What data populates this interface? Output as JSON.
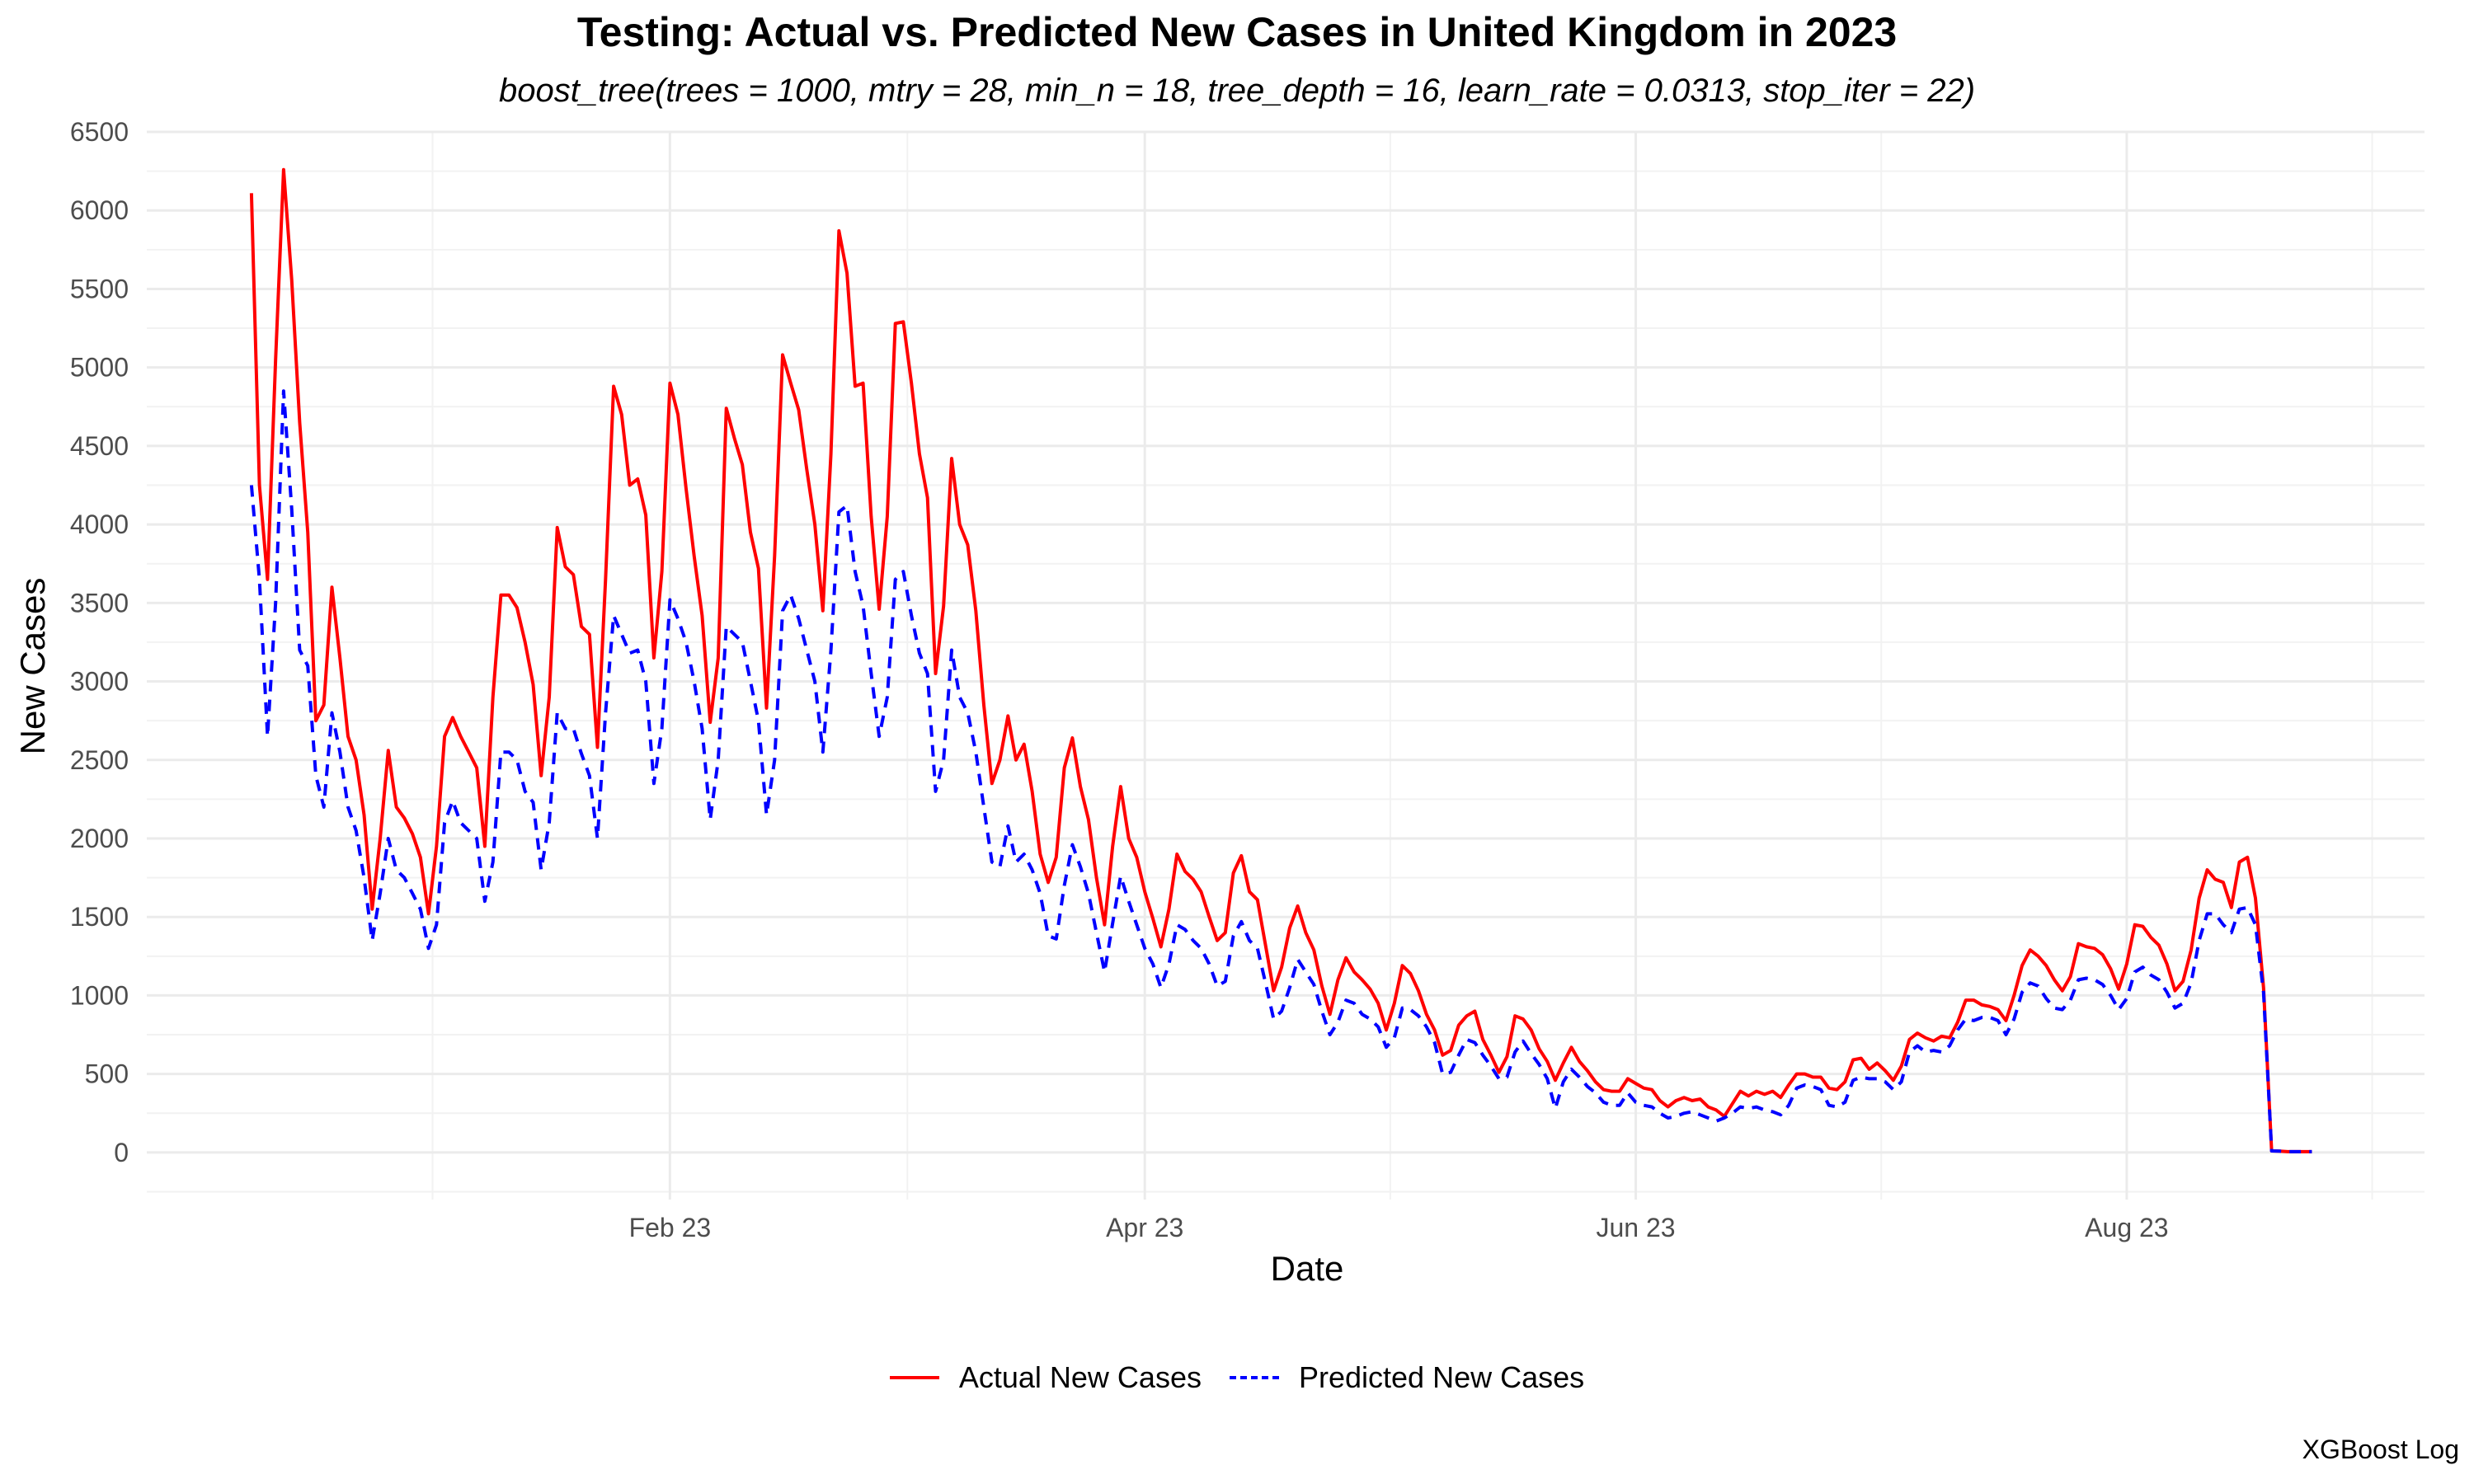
{
  "title": "Testing: Actual vs. Predicted New Cases in United Kingdom in 2023",
  "subtitle": "boost_tree(trees = 1000, mtry = 28, min_n = 18, tree_depth = 16, learn_rate = 0.0313, stop_iter = 22)",
  "caption": "XGBoost Log",
  "chart_data": {
    "type": "line",
    "title": "Testing: Actual vs. Predicted New Cases in United Kingdom in 2023",
    "subtitle": "boost_tree(trees = 1000, mtry = 28, min_n = 18, tree_depth = 16, learn_rate = 0.0313, stop_iter = 22)",
    "xlabel": "Date",
    "ylabel": "New Cases",
    "x_type": "date",
    "x_start": "2023-01-02",
    "xlim": [
      "2022-12-20",
      "2023-09-29"
    ],
    "ylim": [
      -300,
      6500
    ],
    "x_ticks": [
      {
        "date": "2023-02-23",
        "label": "Feb 23"
      },
      {
        "date": "2023-04-23",
        "label": "Apr 23"
      },
      {
        "date": "2023-06-23",
        "label": "Jun 23"
      },
      {
        "date": "2023-08-23",
        "label": "Aug 23"
      }
    ],
    "y_ticks": [
      0,
      500,
      1000,
      1500,
      2000,
      2500,
      3000,
      3500,
      4000,
      4500,
      5000,
      5500,
      6000,
      6500
    ],
    "grid": true,
    "legend_position": "bottom",
    "series": [
      {
        "name": "Actual New Cases",
        "color": "#ff0000",
        "style": "solid",
        "values": [
          6110,
          4250,
          3650,
          5050,
          6260,
          5560,
          4650,
          3950,
          2750,
          2850,
          3600,
          3150,
          2650,
          2500,
          2150,
          1550,
          2000,
          2560,
          2200,
          2130,
          2030,
          1880,
          1520,
          1950,
          2650,
          2770,
          2650,
          2550,
          2450,
          1950,
          2900,
          3550,
          3550,
          3470,
          3250,
          2980,
          2400,
          2900,
          3980,
          3730,
          3680,
          3350,
          3300,
          2580,
          3650,
          4880,
          4700,
          4250,
          4290,
          4060,
          3150,
          3700,
          4900,
          4700,
          4230,
          3800,
          3420,
          2740,
          3150,
          4740,
          4550,
          4380,
          3950,
          3720,
          2830,
          3800,
          5080,
          4900,
          4730,
          4350,
          4000,
          3450,
          4450,
          5870,
          5600,
          4880,
          4900,
          4050,
          3460,
          4050,
          5280,
          5290,
          4900,
          4450,
          4170,
          3050,
          3480,
          4420,
          4000,
          3870,
          3450,
          2850,
          2350,
          2500,
          2780,
          2500,
          2600,
          2300,
          1900,
          1720,
          1880,
          2450,
          2640,
          2330,
          2120,
          1750,
          1450,
          1950,
          2330,
          2000,
          1880,
          1660,
          1490,
          1310,
          1550,
          1900,
          1790,
          1740,
          1660,
          1500,
          1350,
          1400,
          1780,
          1890,
          1660,
          1610,
          1320,
          1030,
          1180,
          1430,
          1570,
          1400,
          1290,
          1060,
          880,
          1100,
          1240,
          1150,
          1100,
          1040,
          950,
          780,
          950,
          1190,
          1140,
          1030,
          880,
          780,
          620,
          650,
          810,
          870,
          900,
          720,
          620,
          510,
          610,
          870,
          850,
          780,
          660,
          580,
          460,
          570,
          670,
          580,
          520,
          450,
          400,
          390,
          390,
          470,
          440,
          410,
          400,
          330,
          290,
          330,
          350,
          330,
          340,
          290,
          270,
          230,
          310,
          390,
          360,
          390,
          370,
          390,
          350,
          430,
          500,
          500,
          480,
          480,
          410,
          400,
          450,
          590,
          600,
          530,
          570,
          520,
          460,
          550,
          720,
          760,
          730,
          710,
          740,
          730,
          830,
          970,
          970,
          940,
          930,
          910,
          840,
          1000,
          1190,
          1290,
          1250,
          1190,
          1100,
          1030,
          1120,
          1330,
          1310,
          1300,
          1260,
          1170,
          1040,
          1200,
          1450,
          1440,
          1370,
          1320,
          1200,
          1030,
          1090,
          1290,
          1620,
          1800,
          1740,
          1720,
          1560,
          1850,
          1880,
          1620,
          1050,
          10,
          8,
          5,
          5,
          5,
          5
        ]
      },
      {
        "name": "Predicted New Cases",
        "color": "#0000ff",
        "style": "dashed",
        "values": [
          4250,
          3650,
          2650,
          3500,
          4850,
          4100,
          3200,
          3100,
          2400,
          2200,
          2800,
          2550,
          2200,
          2050,
          1750,
          1350,
          1650,
          2000,
          1800,
          1750,
          1650,
          1550,
          1300,
          1450,
          2100,
          2240,
          2100,
          2050,
          2000,
          1600,
          1850,
          2550,
          2550,
          2500,
          2300,
          2230,
          1800,
          2100,
          2800,
          2700,
          2700,
          2540,
          2400,
          2000,
          2800,
          3420,
          3300,
          3180,
          3200,
          3000,
          2350,
          2700,
          3520,
          3400,
          3250,
          3000,
          2700,
          2120,
          2500,
          3350,
          3300,
          3250,
          3000,
          2750,
          2150,
          2500,
          3450,
          3550,
          3400,
          3200,
          3000,
          2550,
          3200,
          4080,
          4120,
          3700,
          3480,
          3050,
          2650,
          2900,
          3650,
          3700,
          3420,
          3180,
          3050,
          2300,
          2500,
          3200,
          2900,
          2800,
          2550,
          2200,
          1850,
          1820,
          2080,
          1850,
          1900,
          1800,
          1650,
          1380,
          1360,
          1700,
          1960,
          1820,
          1650,
          1400,
          1150,
          1460,
          1760,
          1600,
          1450,
          1300,
          1200,
          1050,
          1200,
          1450,
          1420,
          1350,
          1300,
          1200,
          1060,
          1090,
          1380,
          1470,
          1350,
          1300,
          1080,
          850,
          900,
          1050,
          1230,
          1150,
          1070,
          900,
          750,
          830,
          970,
          950,
          880,
          850,
          800,
          670,
          730,
          920,
          910,
          870,
          800,
          700,
          500,
          510,
          620,
          720,
          700,
          620,
          550,
          470,
          480,
          640,
          710,
          630,
          560,
          470,
          280,
          450,
          530,
          480,
          420,
          380,
          320,
          300,
          300,
          380,
          320,
          300,
          290,
          250,
          220,
          230,
          250,
          260,
          240,
          220,
          200,
          220,
          250,
          290,
          280,
          290,
          270,
          260,
          240,
          300,
          410,
          430,
          420,
          400,
          300,
          290,
          320,
          460,
          480,
          470,
          470,
          450,
          400,
          450,
          640,
          680,
          640,
          650,
          640,
          680,
          780,
          850,
          840,
          860,
          860,
          840,
          750,
          850,
          1020,
          1080,
          1060,
          980,
          920,
          910,
          970,
          1100,
          1110,
          1100,
          1070,
          1000,
          910,
          980,
          1150,
          1180,
          1130,
          1100,
          1020,
          920,
          950,
          1080,
          1350,
          1520,
          1520,
          1450,
          1400,
          1550,
          1560,
          1450,
          1020,
          10,
          8,
          5,
          5,
          5,
          5
        ]
      }
    ]
  }
}
